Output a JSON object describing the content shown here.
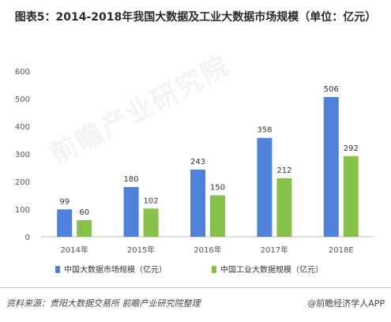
{
  "title": "图表5：2014-2018年我国大数据及工业大数据市场规模（单位：亿元）",
  "watermark": "前瞻产业研究院",
  "source": "资料来源：贵阳大数据交易所  前瞻产业研究院整理",
  "brand": "@前瞻经济学人APP",
  "colors": {
    "series1": "#4f81db",
    "series2": "#86c24a"
  },
  "chart_data": {
    "type": "bar",
    "categories": [
      "2014年",
      "2015年",
      "2016年",
      "2017年",
      "2018E"
    ],
    "ylim": [
      0,
      600
    ],
    "yticks": [
      0,
      100,
      200,
      300,
      400,
      500,
      600
    ],
    "grid": false,
    "legend_position": "bottom",
    "series": [
      {
        "name": "中国大数据市场规模（亿元）",
        "values": [
          99,
          180,
          243,
          358,
          506
        ]
      },
      {
        "name": "中国工业大数据规模（亿元）",
        "values": [
          60,
          102,
          150,
          212,
          292
        ]
      }
    ]
  }
}
